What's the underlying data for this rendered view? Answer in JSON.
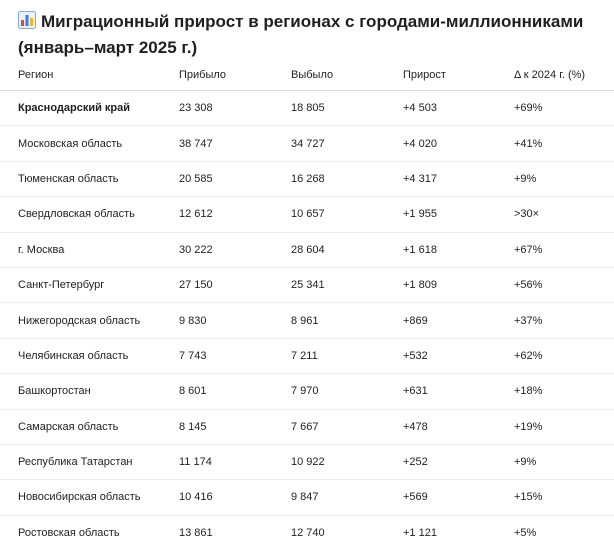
{
  "title": {
    "icon": "bar-chart-icon",
    "text": "Миграционный прирост в регионах с городами-миллионниками (январь–март 2025 г.)"
  },
  "table": {
    "headers": [
      "Регион",
      "Прибыло",
      "Выбыло",
      "Прирост",
      "Δ к 2024 г. (%)"
    ],
    "rows": [
      {
        "region": "Краснодарский край",
        "arrived": "23 308",
        "left": "18 805",
        "growth": "+4 503",
        "delta": "+69%"
      },
      {
        "region": "Московская область",
        "arrived": "38 747",
        "left": "34 727",
        "growth": "+4 020",
        "delta": "+41%"
      },
      {
        "region": "Тюменская область",
        "arrived": "20 585",
        "left": "16 268",
        "growth": "+4 317",
        "delta": "+9%"
      },
      {
        "region": "Свердловская область",
        "arrived": "12 612",
        "left": "10 657",
        "growth": "+1 955",
        "delta": ">30×"
      },
      {
        "region": "г. Москва",
        "arrived": "30 222",
        "left": "28 604",
        "growth": "+1 618",
        "delta": "+67%"
      },
      {
        "region": "Санкт-Петербург",
        "arrived": "27 150",
        "left": "25 341",
        "growth": "+1 809",
        "delta": "+56%"
      },
      {
        "region": "Нижегородская область",
        "arrived": "9 830",
        "left": "8 961",
        "growth": "+869",
        "delta": "+37%"
      },
      {
        "region": "Челябинская область",
        "arrived": "7 743",
        "left": "7 211",
        "growth": "+532",
        "delta": "+62%"
      },
      {
        "region": "Башкортостан",
        "arrived": "8 601",
        "left": "7 970",
        "growth": "+631",
        "delta": "+18%"
      },
      {
        "region": "Самарская область",
        "arrived": "8 145",
        "left": "7 667",
        "growth": "+478",
        "delta": "+19%"
      },
      {
        "region": "Республика Татарстан",
        "arrived": "11 174",
        "left": "10 922",
        "growth": "+252",
        "delta": "+9%"
      },
      {
        "region": "Новосибирская область",
        "arrived": "10 416",
        "left": "9 847",
        "growth": "+569",
        "delta": "+15%"
      },
      {
        "region": "Ростовская область",
        "arrived": "13 861",
        "left": "12 740",
        "growth": "+1 121",
        "delta": "+5%"
      }
    ]
  }
}
